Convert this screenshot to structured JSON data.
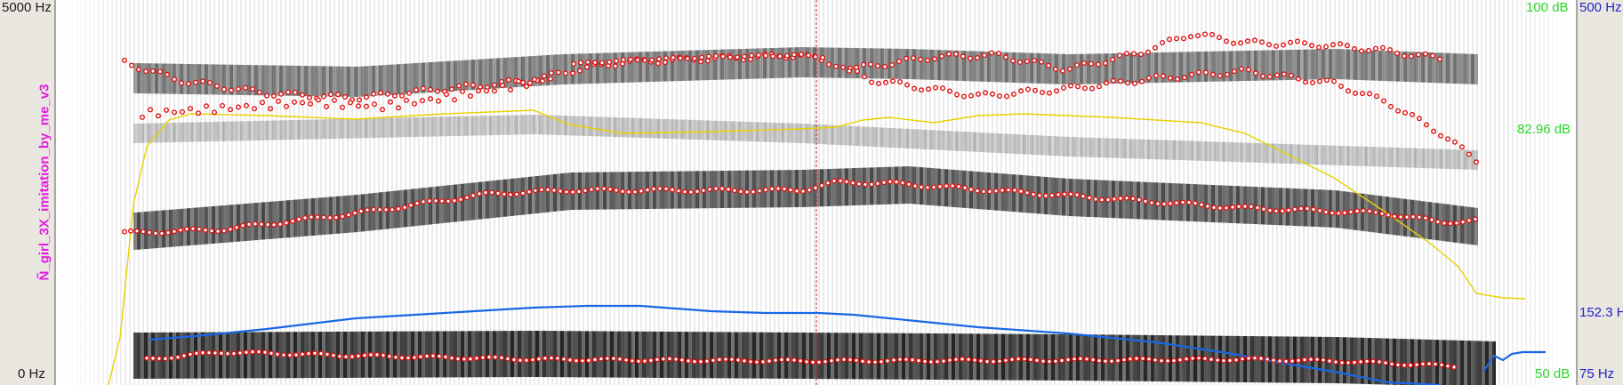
{
  "window": {
    "file_label": "Ñ_girl_3X_imitation_by_me_v3"
  },
  "axes": {
    "freq_top": "5000 Hz",
    "freq_bottom": "0 Hz",
    "intensity_top": "100 dB",
    "intensity_mid": "82.96 dB",
    "intensity_bottom": "50 dB",
    "pitch_top": "500 Hz",
    "pitch_mid": "152.3 Hz",
    "pitch_bottom": "75 Hz"
  },
  "colors": {
    "background": "#e9e7e0",
    "formant_dots": "#e01010",
    "intensity_curve": "#e6d200",
    "pitch_curve": "#1a66e6",
    "cursor": "#c02020",
    "freq_labels": "#1a1a1a",
    "intensity_labels": "#29d829",
    "pitch_labels": "#2323c8",
    "filename_label": "#e21ce2"
  },
  "icons": [
    "formant-dots",
    "intensity-curve",
    "pitch-curve",
    "time-cursor"
  ]
}
